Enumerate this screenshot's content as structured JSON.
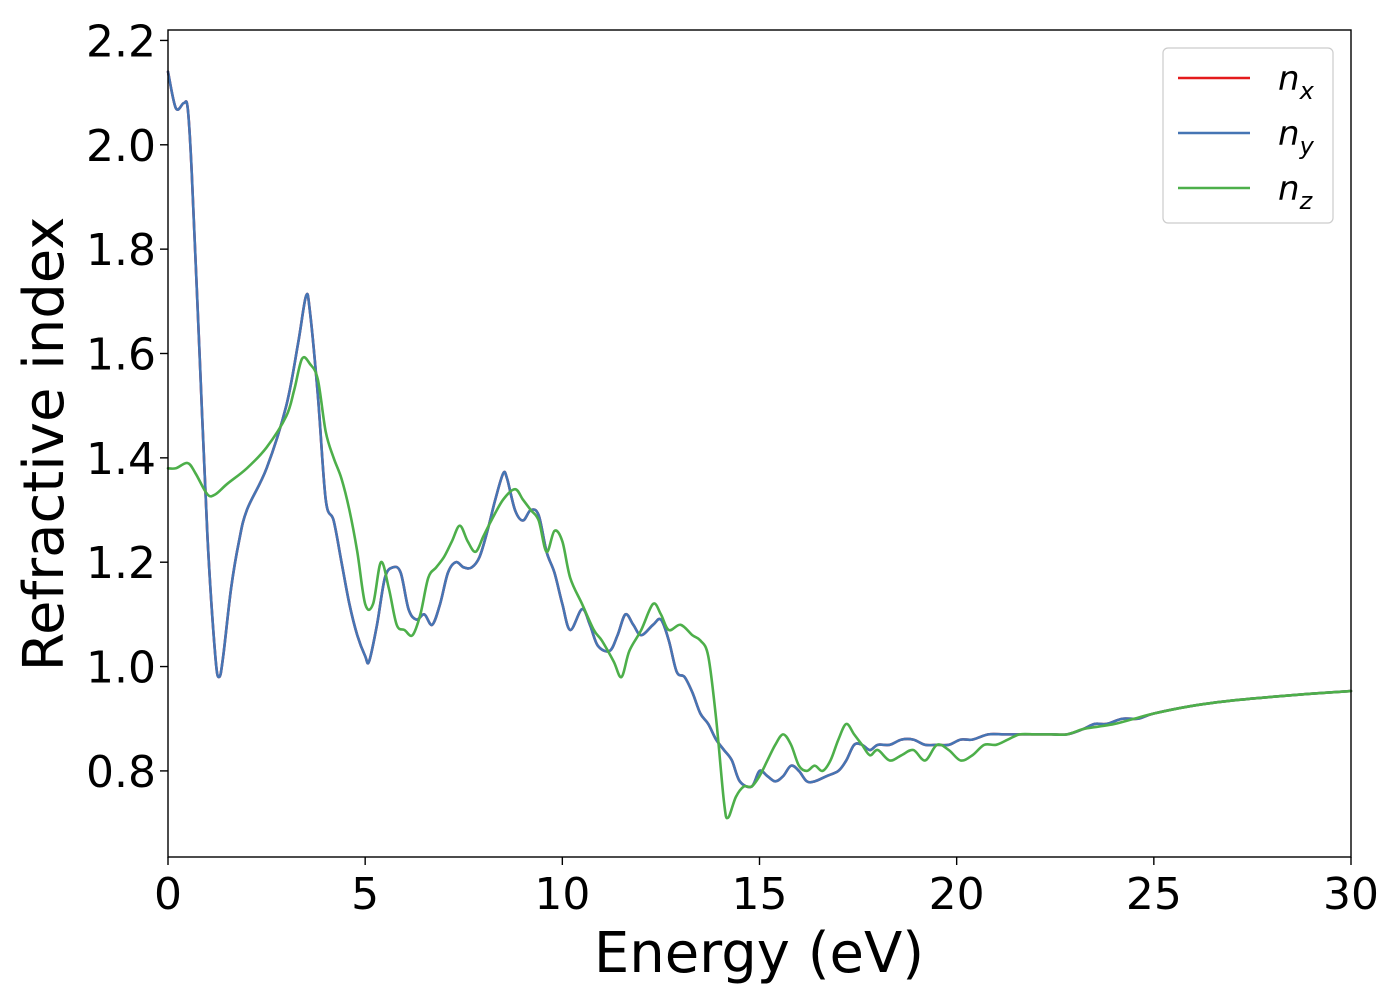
{
  "chart_data": {
    "type": "line",
    "title": "",
    "xlabel": "Energy (eV)",
    "ylabel": "Refractive index",
    "xlim": [
      0,
      30
    ],
    "ylim": [
      0.635,
      2.22
    ],
    "xticks": [
      0,
      5,
      10,
      15,
      20,
      25,
      30
    ],
    "yticks": [
      0.8,
      1.0,
      1.2,
      1.4,
      1.6,
      1.8,
      2.0,
      2.2
    ],
    "xtick_labels": [
      "0",
      "5",
      "10",
      "15",
      "20",
      "25",
      "30"
    ],
    "ytick_labels": [
      "0.8",
      "1.0",
      "1.2",
      "1.4",
      "1.6",
      "1.8",
      "2.0",
      "2.2"
    ],
    "grid": false,
    "legend_position": "top-right",
    "series": [
      {
        "name": "n",
        "subscript": "x",
        "color": "#e41a1c",
        "x": [
          0,
          0.2,
          0.4,
          0.5,
          0.6,
          0.8,
          1.0,
          1.2,
          1.3,
          1.4,
          1.6,
          1.8,
          2.0,
          2.5,
          3.0,
          3.3,
          3.5,
          3.6,
          3.8,
          4.0,
          4.2,
          4.4,
          4.6,
          4.8,
          5.0,
          5.1,
          5.3,
          5.5,
          5.7,
          5.9,
          6.1,
          6.3,
          6.5,
          6.7,
          6.9,
          7.1,
          7.3,
          7.5,
          7.7,
          7.9,
          8.1,
          8.3,
          8.5,
          8.6,
          8.8,
          9.0,
          9.2,
          9.4,
          9.6,
          9.8,
          10.0,
          10.2,
          10.5,
          10.7,
          10.9,
          11.2,
          11.4,
          11.6,
          11.8,
          12.0,
          12.3,
          12.5,
          12.7,
          12.9,
          13.1,
          13.3,
          13.5,
          13.7,
          13.9,
          14.1,
          14.3,
          14.5,
          14.8,
          15.0,
          15.2,
          15.4,
          15.6,
          15.8,
          16.0,
          16.2,
          16.4,
          16.7,
          17.0,
          17.2,
          17.4,
          17.6,
          17.8,
          18.0,
          18.3,
          18.6,
          18.9,
          19.2,
          19.5,
          19.8,
          20.1,
          20.4,
          20.8,
          21.2,
          21.6,
          22.0,
          22.4,
          22.8,
          23.2,
          23.5,
          23.8,
          24.2,
          24.6,
          25.0,
          26.0,
          27.0,
          28.0,
          29.0,
          30.0
        ],
        "values": [
          2.14,
          2.07,
          2.08,
          2.07,
          1.95,
          1.6,
          1.25,
          1.02,
          0.98,
          1.02,
          1.15,
          1.24,
          1.3,
          1.38,
          1.5,
          1.62,
          1.71,
          1.68,
          1.52,
          1.32,
          1.28,
          1.2,
          1.12,
          1.06,
          1.02,
          1.01,
          1.08,
          1.17,
          1.19,
          1.18,
          1.11,
          1.09,
          1.1,
          1.08,
          1.12,
          1.18,
          1.2,
          1.19,
          1.19,
          1.21,
          1.26,
          1.32,
          1.37,
          1.36,
          1.3,
          1.28,
          1.3,
          1.29,
          1.22,
          1.18,
          1.12,
          1.07,
          1.11,
          1.08,
          1.04,
          1.03,
          1.06,
          1.1,
          1.08,
          1.06,
          1.08,
          1.09,
          1.05,
          0.99,
          0.98,
          0.95,
          0.91,
          0.89,
          0.86,
          0.84,
          0.82,
          0.78,
          0.77,
          0.8,
          0.79,
          0.78,
          0.79,
          0.81,
          0.8,
          0.78,
          0.78,
          0.79,
          0.8,
          0.82,
          0.85,
          0.85,
          0.84,
          0.85,
          0.85,
          0.86,
          0.86,
          0.85,
          0.85,
          0.85,
          0.86,
          0.86,
          0.87,
          0.87,
          0.87,
          0.87,
          0.87,
          0.87,
          0.88,
          0.89,
          0.89,
          0.9,
          0.9,
          0.91,
          0.925,
          0.935,
          0.942,
          0.948,
          0.953
        ]
      },
      {
        "name": "n",
        "subscript": "y",
        "color": "#4575b4",
        "x": [
          0,
          0.2,
          0.4,
          0.5,
          0.6,
          0.8,
          1.0,
          1.2,
          1.3,
          1.4,
          1.6,
          1.8,
          2.0,
          2.5,
          3.0,
          3.3,
          3.5,
          3.6,
          3.8,
          4.0,
          4.2,
          4.4,
          4.6,
          4.8,
          5.0,
          5.1,
          5.3,
          5.5,
          5.7,
          5.9,
          6.1,
          6.3,
          6.5,
          6.7,
          6.9,
          7.1,
          7.3,
          7.5,
          7.7,
          7.9,
          8.1,
          8.3,
          8.5,
          8.6,
          8.8,
          9.0,
          9.2,
          9.4,
          9.6,
          9.8,
          10.0,
          10.2,
          10.5,
          10.7,
          10.9,
          11.2,
          11.4,
          11.6,
          11.8,
          12.0,
          12.3,
          12.5,
          12.7,
          12.9,
          13.1,
          13.3,
          13.5,
          13.7,
          13.9,
          14.1,
          14.3,
          14.5,
          14.8,
          15.0,
          15.2,
          15.4,
          15.6,
          15.8,
          16.0,
          16.2,
          16.4,
          16.7,
          17.0,
          17.2,
          17.4,
          17.6,
          17.8,
          18.0,
          18.3,
          18.6,
          18.9,
          19.2,
          19.5,
          19.8,
          20.1,
          20.4,
          20.8,
          21.2,
          21.6,
          22.0,
          22.4,
          22.8,
          23.2,
          23.5,
          23.8,
          24.2,
          24.6,
          25.0,
          26.0,
          27.0,
          28.0,
          29.0,
          30.0
        ],
        "values": [
          2.14,
          2.07,
          2.08,
          2.07,
          1.95,
          1.6,
          1.25,
          1.02,
          0.98,
          1.02,
          1.15,
          1.24,
          1.3,
          1.38,
          1.5,
          1.62,
          1.71,
          1.68,
          1.52,
          1.32,
          1.28,
          1.2,
          1.12,
          1.06,
          1.02,
          1.01,
          1.08,
          1.17,
          1.19,
          1.18,
          1.11,
          1.09,
          1.1,
          1.08,
          1.12,
          1.18,
          1.2,
          1.19,
          1.19,
          1.21,
          1.26,
          1.32,
          1.37,
          1.36,
          1.3,
          1.28,
          1.3,
          1.29,
          1.22,
          1.18,
          1.12,
          1.07,
          1.11,
          1.08,
          1.04,
          1.03,
          1.06,
          1.1,
          1.08,
          1.06,
          1.08,
          1.09,
          1.05,
          0.99,
          0.98,
          0.95,
          0.91,
          0.89,
          0.86,
          0.84,
          0.82,
          0.78,
          0.77,
          0.8,
          0.79,
          0.78,
          0.79,
          0.81,
          0.8,
          0.78,
          0.78,
          0.79,
          0.8,
          0.82,
          0.85,
          0.85,
          0.84,
          0.85,
          0.85,
          0.86,
          0.86,
          0.85,
          0.85,
          0.85,
          0.86,
          0.86,
          0.87,
          0.87,
          0.87,
          0.87,
          0.87,
          0.87,
          0.88,
          0.89,
          0.89,
          0.9,
          0.9,
          0.91,
          0.925,
          0.935,
          0.942,
          0.948,
          0.953
        ]
      },
      {
        "name": "n",
        "subscript": "z",
        "color": "#4daf4a",
        "x": [
          0,
          0.2,
          0.5,
          0.7,
          1.0,
          1.2,
          1.5,
          2.0,
          2.5,
          3.0,
          3.2,
          3.4,
          3.6,
          3.8,
          4.0,
          4.2,
          4.4,
          4.6,
          4.8,
          5.0,
          5.2,
          5.4,
          5.6,
          5.8,
          6.0,
          6.2,
          6.4,
          6.6,
          6.8,
          7.0,
          7.2,
          7.4,
          7.6,
          7.8,
          8.0,
          8.2,
          8.5,
          8.8,
          9.0,
          9.2,
          9.4,
          9.6,
          9.8,
          10.0,
          10.2,
          10.5,
          10.8,
          11.0,
          11.3,
          11.5,
          11.7,
          12.0,
          12.3,
          12.5,
          12.7,
          13.0,
          13.3,
          13.5,
          13.7,
          13.9,
          14.1,
          14.2,
          14.4,
          14.6,
          14.8,
          15.0,
          15.2,
          15.4,
          15.6,
          15.8,
          16.0,
          16.2,
          16.4,
          16.6,
          16.8,
          17.0,
          17.2,
          17.4,
          17.6,
          17.8,
          18.0,
          18.3,
          18.6,
          18.9,
          19.2,
          19.5,
          19.8,
          20.1,
          20.4,
          20.7,
          21.0,
          21.3,
          21.6,
          22.0,
          22.4,
          22.8,
          23.2,
          23.6,
          24.0,
          24.5,
          25.0,
          26.0,
          27.0,
          28.0,
          29.0,
          30.0
        ],
        "values": [
          1.38,
          1.38,
          1.39,
          1.37,
          1.33,
          1.33,
          1.35,
          1.38,
          1.42,
          1.48,
          1.53,
          1.59,
          1.58,
          1.55,
          1.45,
          1.4,
          1.36,
          1.3,
          1.22,
          1.12,
          1.12,
          1.2,
          1.15,
          1.08,
          1.07,
          1.06,
          1.1,
          1.17,
          1.19,
          1.21,
          1.24,
          1.27,
          1.24,
          1.22,
          1.25,
          1.28,
          1.32,
          1.34,
          1.32,
          1.3,
          1.28,
          1.22,
          1.26,
          1.24,
          1.17,
          1.12,
          1.07,
          1.05,
          1.01,
          0.98,
          1.03,
          1.07,
          1.12,
          1.1,
          1.07,
          1.08,
          1.06,
          1.05,
          1.02,
          0.9,
          0.74,
          0.71,
          0.75,
          0.77,
          0.77,
          0.79,
          0.82,
          0.85,
          0.87,
          0.85,
          0.81,
          0.8,
          0.81,
          0.8,
          0.82,
          0.86,
          0.89,
          0.87,
          0.85,
          0.83,
          0.84,
          0.82,
          0.83,
          0.84,
          0.82,
          0.85,
          0.84,
          0.82,
          0.83,
          0.85,
          0.85,
          0.86,
          0.87,
          0.87,
          0.87,
          0.87,
          0.88,
          0.885,
          0.89,
          0.9,
          0.91,
          0.925,
          0.935,
          0.942,
          0.948,
          0.953
        ]
      }
    ]
  }
}
